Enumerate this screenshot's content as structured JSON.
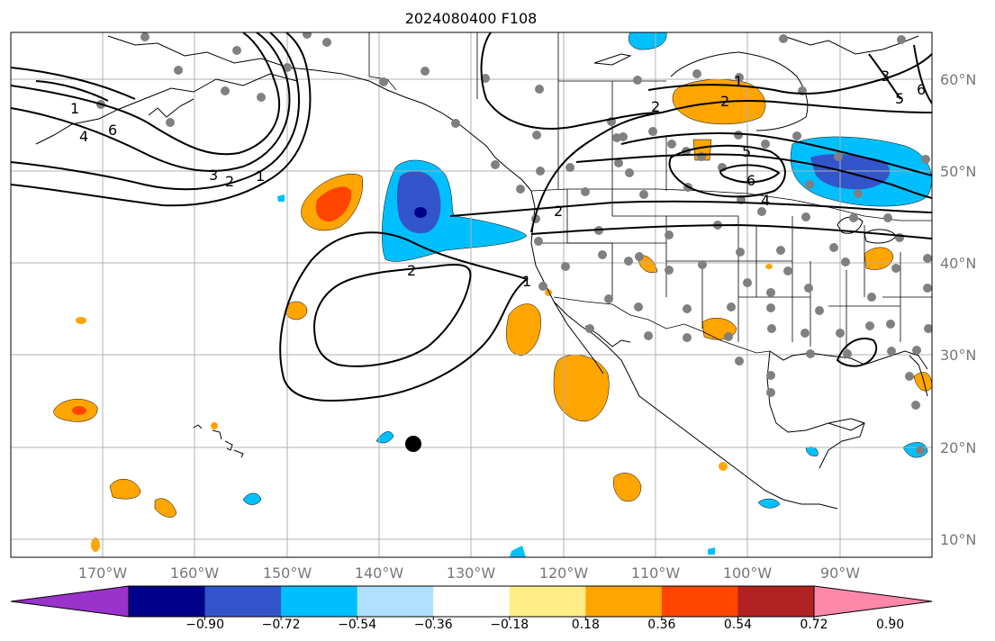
{
  "title": "2024080400 F108",
  "map": {
    "lon_labels": [
      "170°W",
      "160°W",
      "150°W",
      "140°W",
      "130°W",
      "120°W",
      "110°W",
      "100°W",
      "90°W"
    ],
    "lat_labels": [
      "60°N",
      "50°N",
      "40°N",
      "30°N",
      "20°N",
      "10°N"
    ],
    "contour_labels": [
      "1",
      "2",
      "3",
      "4",
      "5",
      "6",
      "1",
      "2",
      "1",
      "2",
      "3",
      "4",
      "5",
      "6",
      "1",
      "2",
      "1",
      "2",
      "3",
      "5",
      "6"
    ]
  },
  "colorbar": {
    "ticks": [
      "−0.90",
      "−0.72",
      "−0.54",
      "−0.36",
      "−0.18",
      "0.18",
      "0.36",
      "0.54",
      "0.72",
      "0.90"
    ],
    "colors": [
      "#9933cc",
      "#00008b",
      "#3355cc",
      "#00bfff",
      "#b0e0ff",
      "#ffffff",
      "#ffee88",
      "#ffa500",
      "#ff4500",
      "#b22222",
      "#ff88aa"
    ]
  },
  "colors": {
    "obs_dot": "#808080",
    "grid": "#b0b0b0",
    "contour": "#000000"
  }
}
